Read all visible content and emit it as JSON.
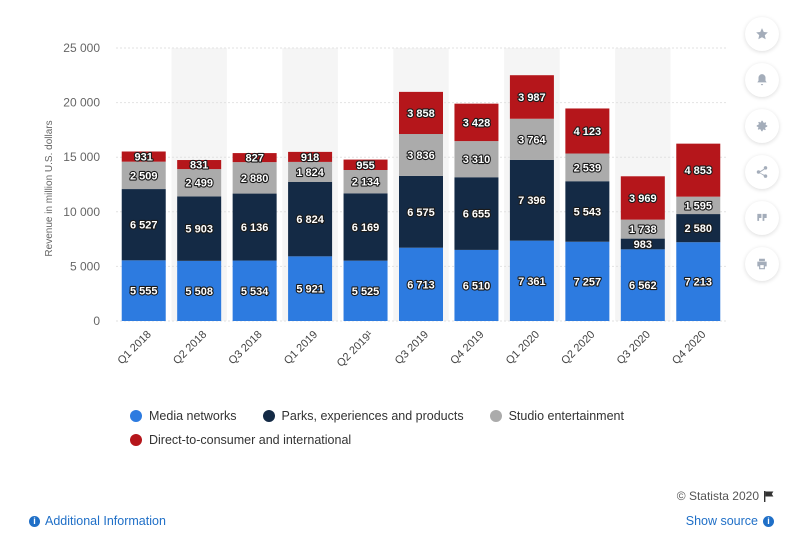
{
  "chart_data": {
    "type": "bar",
    "stacked": true,
    "categories": [
      "Q1 2018",
      "Q2 2018",
      "Q3 2018",
      "Q1 2019",
      "Q2 2019¹",
      "Q3 2019",
      "Q4 2019",
      "Q1 2020",
      "Q2 2020",
      "Q3 2020",
      "Q4 2020"
    ],
    "series": [
      {
        "name": "Media networks",
        "color": "#2d7be0",
        "values": [
          5555,
          5508,
          5534,
          5921,
          5525,
          6713,
          6510,
          7361,
          7257,
          6562,
          7213
        ]
      },
      {
        "name": "Parks, experiences and products",
        "color": "#142a45",
        "values": [
          6527,
          5903,
          6136,
          6824,
          6169,
          6575,
          6655,
          7396,
          5543,
          983,
          2580
        ]
      },
      {
        "name": "Studio entertainment",
        "color": "#ababab",
        "values": [
          2509,
          2499,
          2880,
          1824,
          2134,
          3836,
          3310,
          3764,
          2539,
          1738,
          1595
        ]
      },
      {
        "name": "Direct-to-consumer and international",
        "color": "#b5161b",
        "values": [
          931,
          831,
          827,
          918,
          955,
          3858,
          3428,
          3987,
          4123,
          3969,
          4853
        ]
      }
    ],
    "value_labels": [
      [
        "5 555",
        "5 508",
        "5 534",
        "5 921",
        "5 525",
        "6 713",
        "6 510",
        "7 361",
        "7 257",
        "6 562",
        "7 213"
      ],
      [
        "6 527",
        "5 903",
        "6 136",
        "6 824",
        "6 169",
        "6 575",
        "6 655",
        "7 396",
        "5 543",
        "983",
        "2 580"
      ],
      [
        "2 509",
        "2 499",
        "2 880",
        "1 824",
        "2 134",
        "3 836",
        "3 310",
        "3 764",
        "2 539",
        "1 738",
        "1 595"
      ],
      [
        "931",
        "831",
        "827",
        "918",
        "955",
        "3 858",
        "3 428",
        "3 987",
        "4 123",
        "3 969",
        "4 853"
      ]
    ],
    "ylabel": "Revenue in million U.S. dollars",
    "xlabel": "",
    "ylim": [
      0,
      25000
    ],
    "yticks": [
      0,
      5000,
      10000,
      15000,
      20000,
      25000
    ],
    "ytick_labels": [
      "0",
      "5 000",
      "10 000",
      "15 000",
      "20 000",
      "25 000"
    ],
    "grid": true,
    "legend_position": "bottom"
  },
  "legend": {
    "items": [
      {
        "label": "Media networks",
        "color": "#2d7be0"
      },
      {
        "label": "Parks, experiences and products",
        "color": "#142a45"
      },
      {
        "label": "Studio entertainment",
        "color": "#ababab"
      },
      {
        "label": "Direct-to-consumer and international",
        "color": "#b5161b"
      }
    ]
  },
  "toolbar": {
    "icons": [
      "star-icon",
      "bell-icon",
      "gear-icon",
      "share-icon",
      "quote-icon",
      "print-icon"
    ]
  },
  "footer": {
    "copyright": "© Statista 2020",
    "additional_info": "Additional Information",
    "show_source": "Show source"
  }
}
